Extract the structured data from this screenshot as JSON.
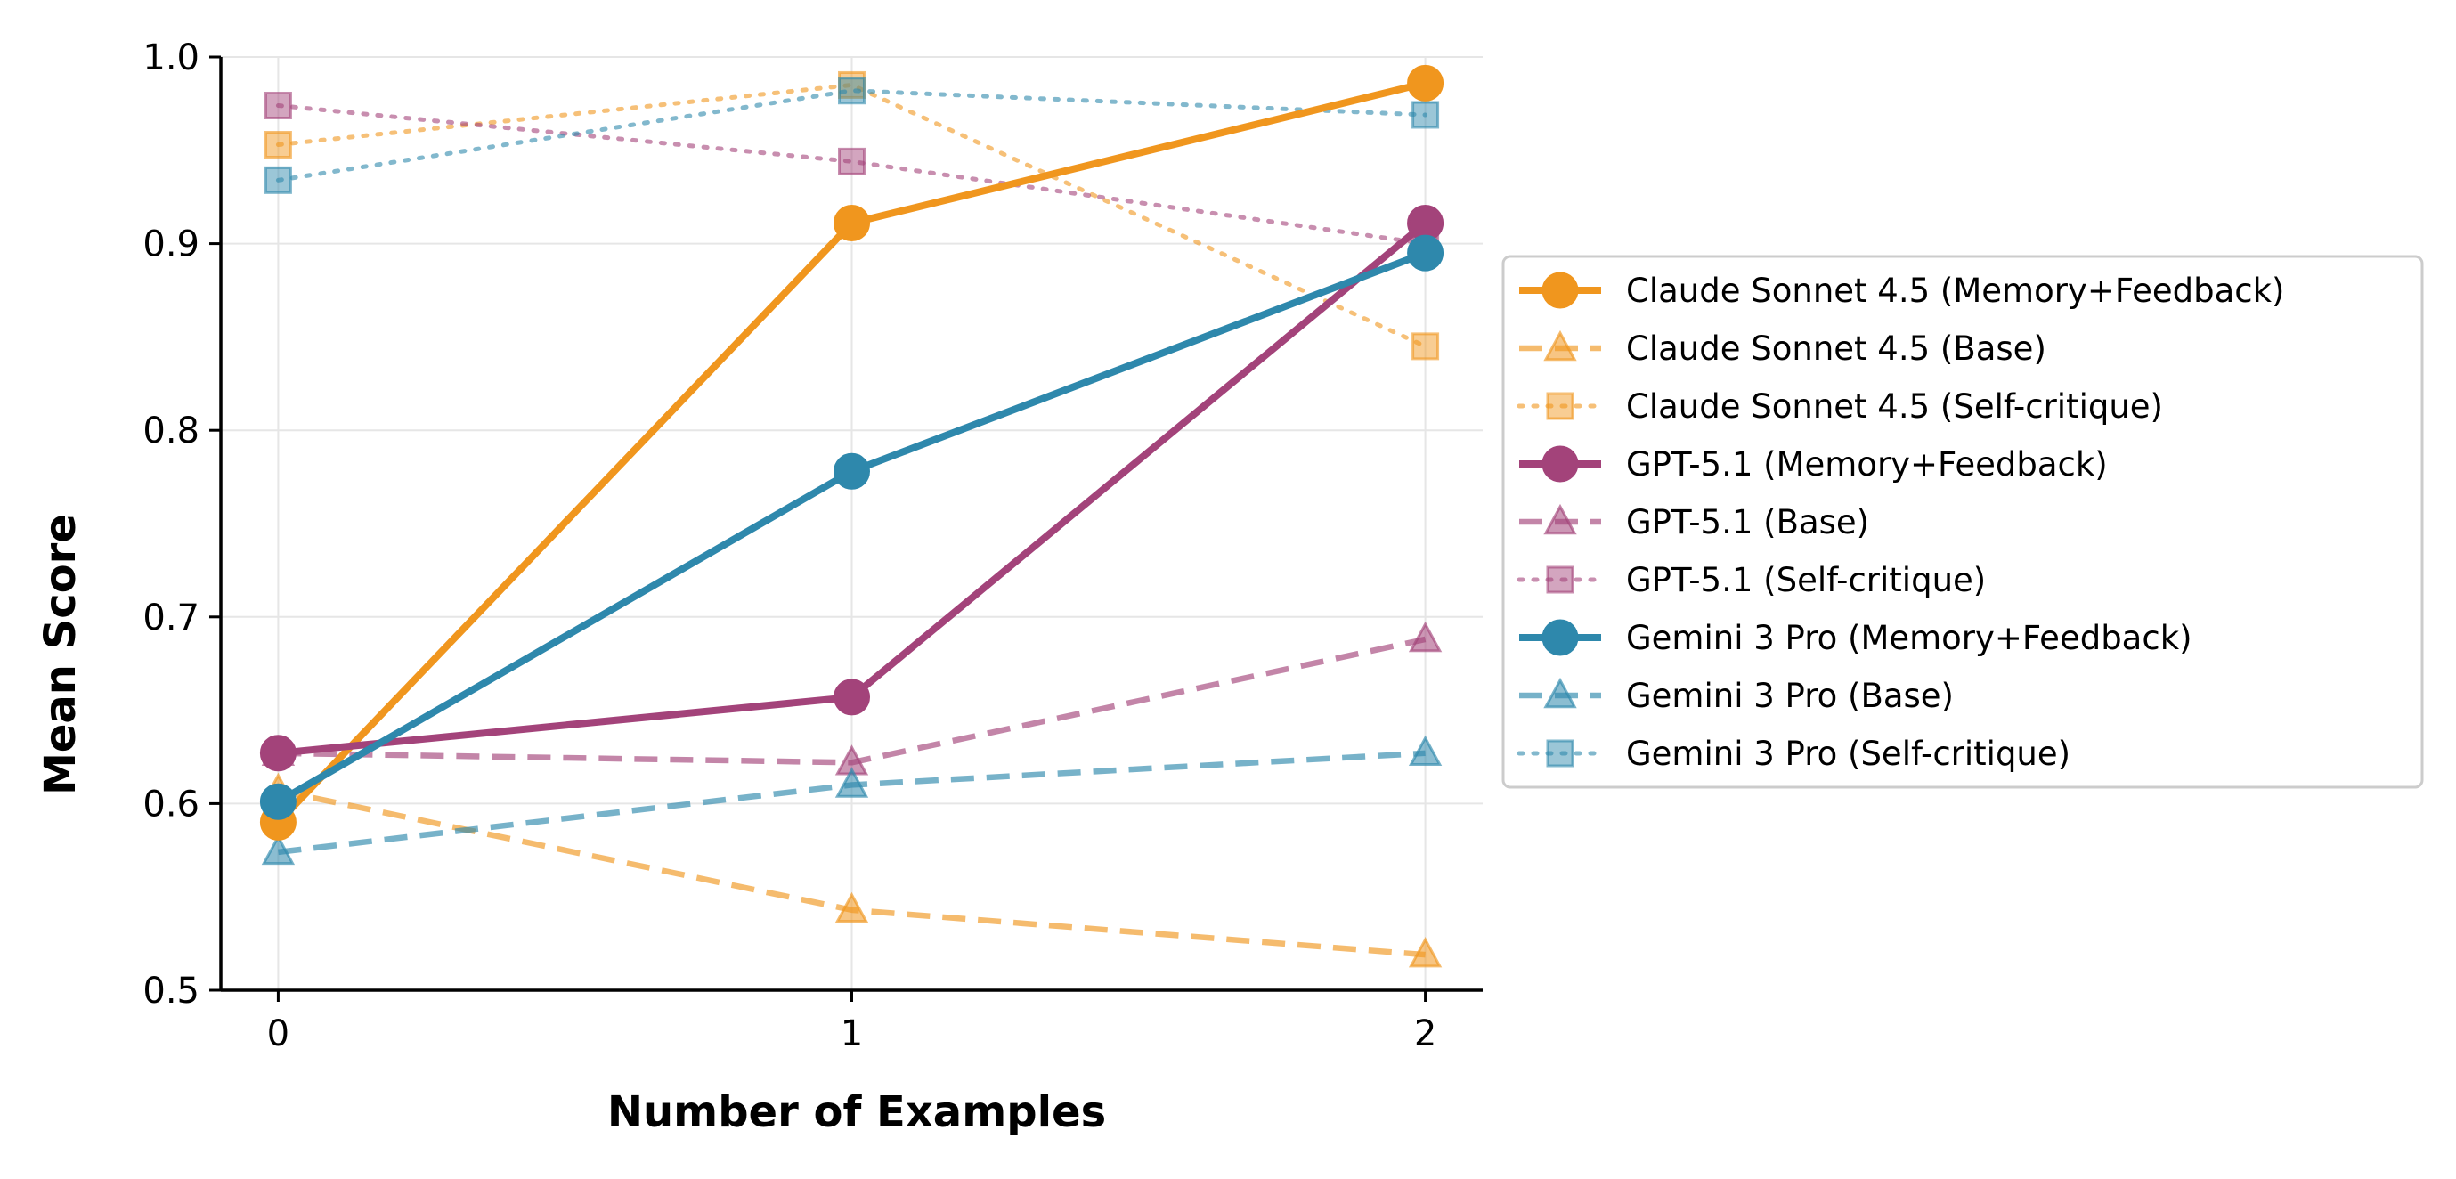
{
  "chart_data": {
    "type": "line",
    "title": "",
    "xlabel": "Number of Examples",
    "ylabel": "Mean Score",
    "x": [
      0,
      1,
      2
    ],
    "x_tick_labels": [
      "0",
      "1",
      "2"
    ],
    "y_ticks": [
      0.5,
      0.6,
      0.7,
      0.8,
      0.9,
      1.0
    ],
    "y_tick_labels": [
      "0.5",
      "0.6",
      "0.7",
      "0.8",
      "0.9",
      "1.0"
    ],
    "xlim": [
      -0.1,
      2.1
    ],
    "ylim": [
      0.5,
      1.0
    ],
    "grid": true,
    "legend_position": "right, outside plot area",
    "series": [
      {
        "name": "Claude Sonnet 4.5 (Memory+Feedback)",
        "values": [
          0.59,
          0.911,
          0.986
        ],
        "color": "#F0961E",
        "style": "solid",
        "marker": "circle",
        "opacity": 1.0
      },
      {
        "name": "Claude Sonnet 4.5 (Base)",
        "values": [
          0.607,
          0.543,
          0.519
        ],
        "color": "#F0961E",
        "style": "dashed",
        "marker": "triangle",
        "opacity": 0.65
      },
      {
        "name": "Claude Sonnet 4.5 (Self-critique)",
        "values": [
          0.953,
          0.985,
          0.845
        ],
        "color": "#F0961E",
        "style": "dotted",
        "marker": "square",
        "opacity": 0.6
      },
      {
        "name": "GPT-5.1 (Memory+Feedback)",
        "values": [
          0.627,
          0.657,
          0.911
        ],
        "color": "#A3437A",
        "style": "solid",
        "marker": "circle",
        "opacity": 1.0
      },
      {
        "name": "GPT-5.1 (Base)",
        "values": [
          0.627,
          0.622,
          0.688
        ],
        "color": "#A3437A",
        "style": "dashed",
        "marker": "triangle",
        "opacity": 0.65
      },
      {
        "name": "GPT-5.1 (Self-critique)",
        "values": [
          0.974,
          0.944,
          0.9
        ],
        "color": "#A3437A",
        "style": "dotted",
        "marker": "square",
        "opacity": 0.6
      },
      {
        "name": "Gemini 3 Pro (Memory+Feedback)",
        "values": [
          0.601,
          0.778,
          0.895
        ],
        "color": "#2E88AC",
        "style": "solid",
        "marker": "circle",
        "opacity": 1.0
      },
      {
        "name": "Gemini 3 Pro (Base)",
        "values": [
          0.574,
          0.61,
          0.627
        ],
        "color": "#2E88AC",
        "style": "dashed",
        "marker": "triangle",
        "opacity": 0.65
      },
      {
        "name": "Gemini 3 Pro (Self-critique)",
        "values": [
          0.934,
          0.982,
          0.969
        ],
        "color": "#2E88AC",
        "style": "dotted",
        "marker": "square",
        "opacity": 0.6
      }
    ]
  }
}
